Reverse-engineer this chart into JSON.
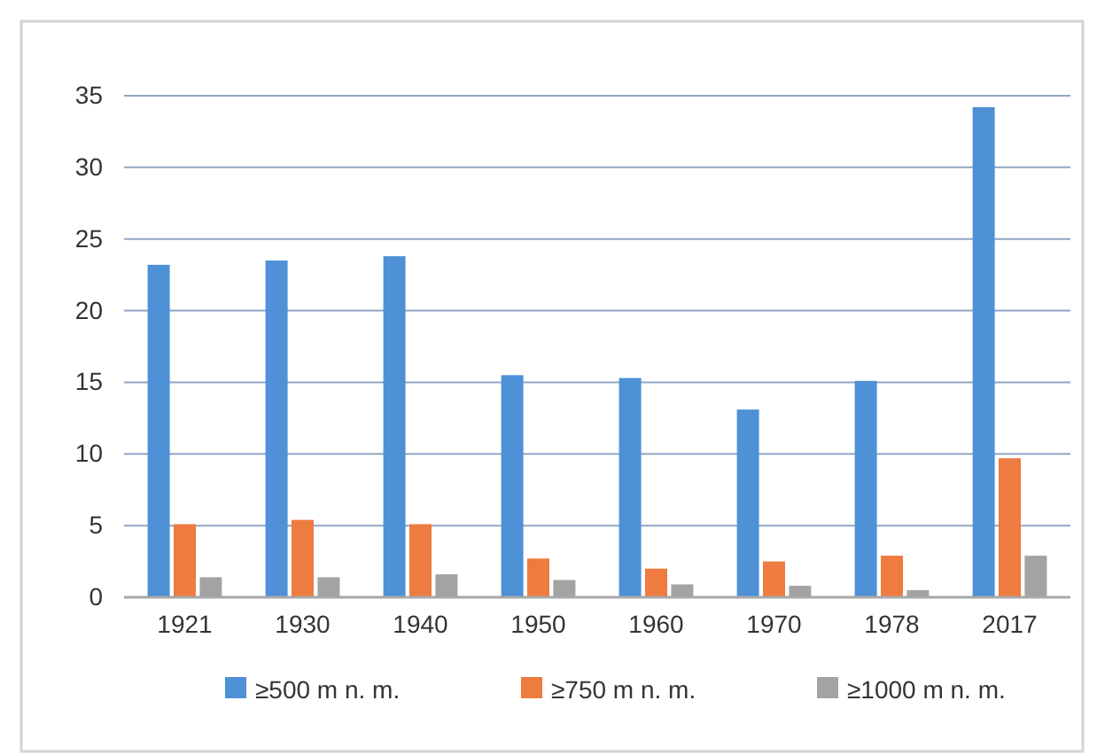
{
  "chart_data": {
    "type": "bar",
    "categories": [
      "1921",
      "1930",
      "1940",
      "1950",
      "1960",
      "1970",
      "1978",
      "2017"
    ],
    "series": [
      {
        "name": "≥500 m n. m.",
        "color": "#4e91d6",
        "values": [
          23.2,
          23.5,
          23.8,
          15.5,
          15.3,
          13.1,
          15.1,
          34.2
        ]
      },
      {
        "name": "≥750 m n. m.",
        "color": "#ee7b3f",
        "values": [
          5.1,
          5.4,
          5.1,
          2.7,
          2.0,
          2.5,
          2.9,
          9.7
        ]
      },
      {
        "name": "≥1000 m n. m.",
        "color": "#a3a3a3",
        "values": [
          1.4,
          1.4,
          1.6,
          1.2,
          0.9,
          0.8,
          0.5,
          2.9
        ]
      }
    ],
    "ylim": [
      0,
      35
    ],
    "yticks": [
      0,
      5,
      10,
      15,
      20,
      25,
      30,
      35
    ],
    "grid": "y",
    "legend": "bottom"
  }
}
